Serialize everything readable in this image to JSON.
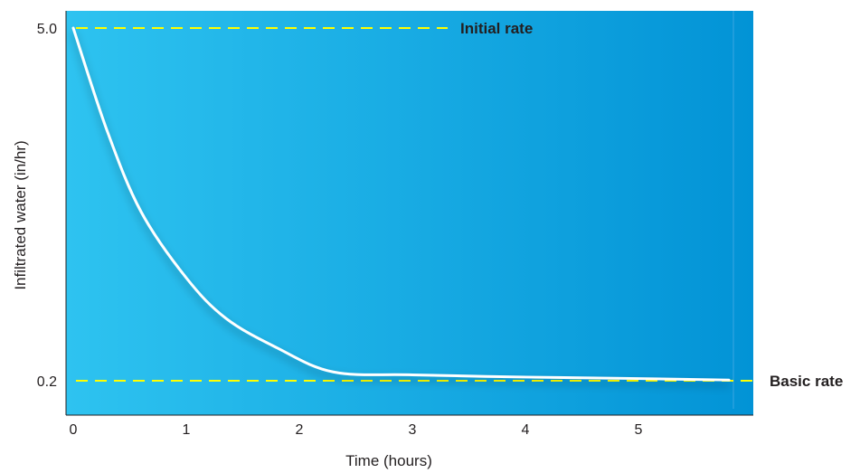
{
  "chart_data": {
    "type": "line",
    "title": "",
    "xlabel": "Time (hours)",
    "ylabel": "Infiltrated water (in/hr)",
    "xlim": [
      0,
      6
    ],
    "ylim": [
      0.2,
      5.0
    ],
    "x_ticks": [
      "0",
      "1",
      "2",
      "3",
      "4",
      "5"
    ],
    "y_ticks": [
      "5.0",
      "0.2"
    ],
    "series": [
      {
        "color": "#ffffff",
        "x": [
          0.0,
          0.3,
          0.6,
          1.0,
          1.35,
          1.8,
          2.3,
          3.0,
          4.0,
          5.0,
          5.8
        ],
        "y": [
          5.0,
          3.6,
          2.5,
          1.6,
          1.05,
          0.65,
          0.32,
          0.28,
          0.25,
          0.23,
          0.21
        ]
      }
    ],
    "reference_lines": [
      {
        "y": 5.0,
        "label": "Initial rate",
        "color": "#ffff00"
      },
      {
        "y": 0.2,
        "label": "Basic rate",
        "color": "#ffff00"
      }
    ],
    "background_gradient": [
      "#2ec3f0",
      "#0293d6"
    ],
    "grid": false
  }
}
